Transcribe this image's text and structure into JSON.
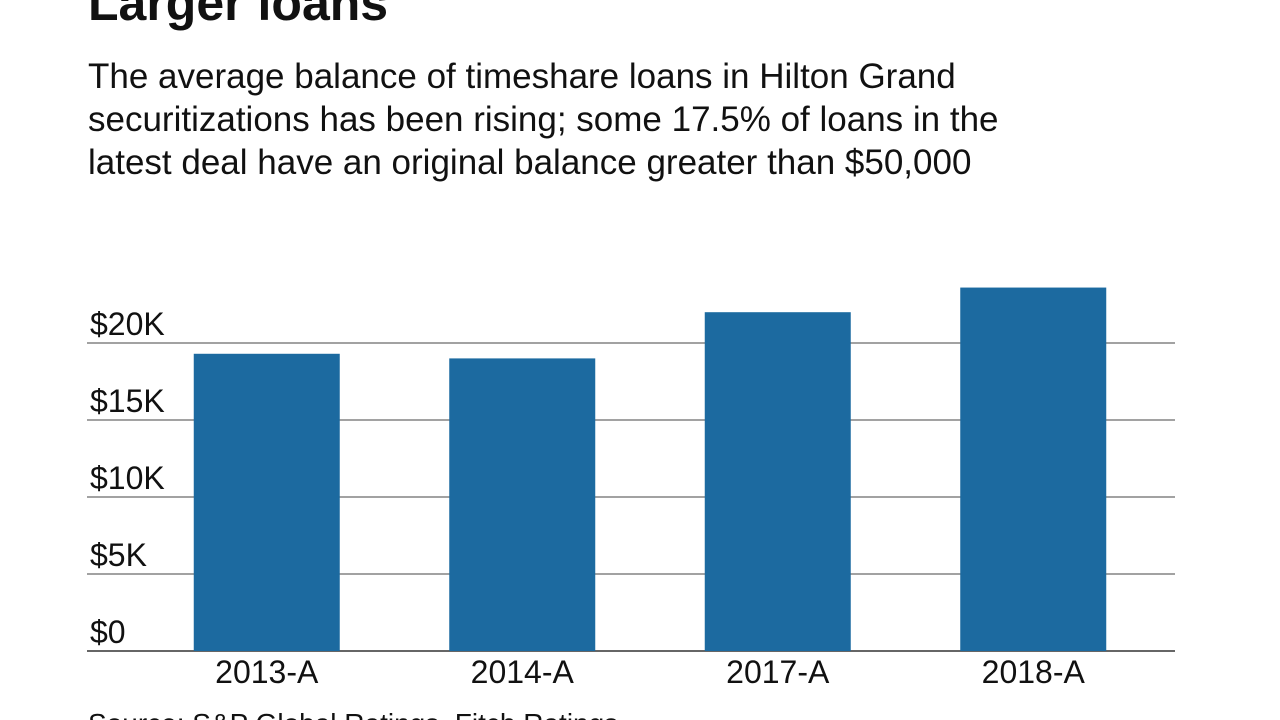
{
  "chart_data": {
    "type": "bar",
    "title": "Larger loans",
    "subtitle": [
      "The average balance of timeshare loans in Hilton Grand",
      "securitizations has been rising; some 17.5% of loans in the",
      "latest deal have an original balance greater than $50,000"
    ],
    "categories": [
      "2013-A",
      "2014-A",
      "2017-A",
      "2018-A"
    ],
    "values": [
      19300,
      19000,
      22000,
      23600
    ],
    "color": "#1c6aa0",
    "ylim": [
      0,
      24000
    ],
    "yticks": [
      {
        "value": 0,
        "label": "$0"
      },
      {
        "value": 5000,
        "label": "$5K"
      },
      {
        "value": 10000,
        "label": "$10K"
      },
      {
        "value": 15000,
        "label": "$15K"
      },
      {
        "value": 20000,
        "label": "$20K"
      }
    ],
    "grid": true,
    "source": "Source: S&P Global Ratings, Fitch Ratings"
  }
}
